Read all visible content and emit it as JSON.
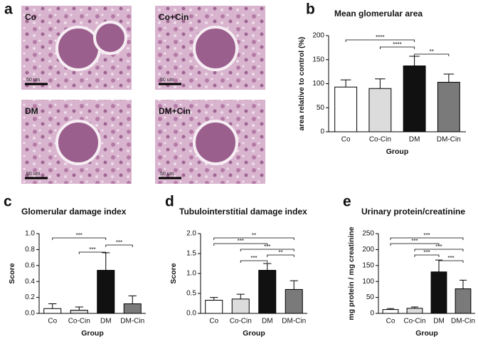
{
  "micrographs": {
    "panel_label": "a",
    "images": [
      {
        "label": "Co",
        "scale": "50 um"
      },
      {
        "label": "Co+Cin",
        "scale": "50 um"
      },
      {
        "label": "DM",
        "scale": "50 um"
      },
      {
        "label": "DM+Cin",
        "scale": "50 um"
      }
    ]
  },
  "chart_data": [
    {
      "type": "bar",
      "panel_label": "b",
      "title": "Mean glomerular area",
      "ylabel": "area relative to control (%)",
      "xlabel": "Group",
      "categories": [
        "Co",
        "Co-Cin",
        "DM",
        "DM-Cin"
      ],
      "values": [
        93,
        90,
        137,
        103
      ],
      "errors": [
        15,
        20,
        20,
        17
      ],
      "colors": [
        "#ffffff",
        "#dcdcdc",
        "#111111",
        "#7a7a7a"
      ],
      "ylim": [
        0,
        200
      ],
      "yticks": [
        0,
        50,
        100,
        150,
        200
      ],
      "significance": [
        {
          "from": 0,
          "to": 2,
          "label": "****"
        },
        {
          "from": 1,
          "to": 2,
          "label": "****"
        },
        {
          "from": 2,
          "to": 3,
          "label": "**"
        }
      ]
    },
    {
      "type": "bar",
      "panel_label": "c",
      "title": "Glomerular damage index",
      "ylabel": "Score",
      "xlabel": "Group",
      "categories": [
        "Co",
        "Co-Cin",
        "DM",
        "DM-Cin"
      ],
      "values": [
        0.06,
        0.04,
        0.54,
        0.12
      ],
      "errors": [
        0.06,
        0.04,
        0.22,
        0.1
      ],
      "colors": [
        "#ffffff",
        "#dcdcdc",
        "#111111",
        "#7a7a7a"
      ],
      "ylim": [
        0,
        1.0
      ],
      "yticks": [
        {
          "value": 0,
          "label": "0.0"
        },
        0.2,
        0.4,
        0.6,
        0.8,
        {
          "value": 1.0,
          "label": "1.0"
        }
      ],
      "significance": [
        {
          "from": 0,
          "to": 2,
          "label": "***"
        },
        {
          "from": 2,
          "to": 3,
          "label": "***"
        },
        {
          "from": 1,
          "to": 2,
          "label": "***"
        }
      ]
    },
    {
      "type": "bar",
      "panel_label": "d",
      "title": "Tubulointerstitial damage index",
      "ylabel": "Score",
      "xlabel": "Group",
      "categories": [
        "Co",
        "Co-Cin",
        "DM",
        "DM-Cin"
      ],
      "values": [
        0.33,
        0.36,
        1.08,
        0.6
      ],
      "errors": [
        0.07,
        0.12,
        0.17,
        0.22
      ],
      "colors": [
        "#ffffff",
        "#dcdcdc",
        "#111111",
        "#7a7a7a"
      ],
      "ylim": [
        0,
        2.0
      ],
      "yticks": [
        {
          "value": 0,
          "label": "0.0"
        },
        0.5,
        {
          "value": 1.0,
          "label": "1.0"
        },
        1.5,
        {
          "value": 2.0,
          "label": "2.0"
        }
      ],
      "significance": [
        {
          "from": 0,
          "to": 3,
          "label": "**"
        },
        {
          "from": 0,
          "to": 2,
          "label": "***"
        },
        {
          "from": 1,
          "to": 3,
          "label": "***"
        },
        {
          "from": 2,
          "to": 3,
          "label": "**"
        },
        {
          "from": 1,
          "to": 2,
          "label": "***"
        }
      ]
    },
    {
      "type": "bar",
      "panel_label": "e",
      "title": "Urinary protein/creatinine",
      "ylabel": "mg protein / mg creatinine",
      "xlabel": "Group",
      "categories": [
        "Co",
        "Co-Cin",
        "DM",
        "DM-Cin"
      ],
      "values": [
        12,
        16,
        130,
        77
      ],
      "errors": [
        3,
        4,
        37,
        27
      ],
      "colors": [
        "#ffffff",
        "#dcdcdc",
        "#111111",
        "#7a7a7a"
      ],
      "ylim": [
        0,
        250
      ],
      "yticks": [
        0,
        50,
        100,
        150,
        200,
        250
      ],
      "significance": [
        {
          "from": 0,
          "to": 3,
          "label": "***"
        },
        {
          "from": 0,
          "to": 2,
          "label": "***"
        },
        {
          "from": 1,
          "to": 3,
          "label": "***"
        },
        {
          "from": 1,
          "to": 2,
          "label": "***"
        },
        {
          "from": 2,
          "to": 3,
          "label": "***"
        }
      ]
    }
  ]
}
